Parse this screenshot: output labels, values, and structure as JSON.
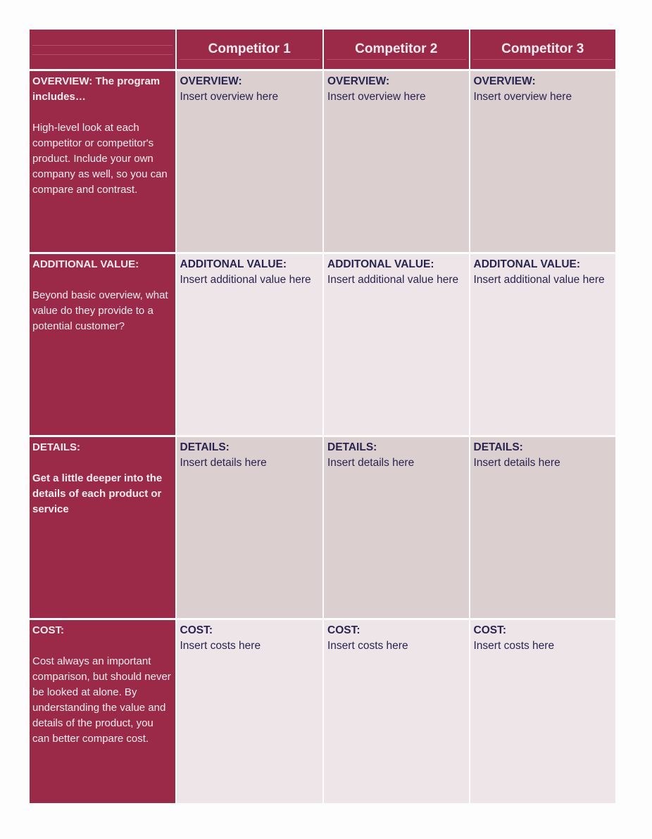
{
  "header": {
    "columns": [
      "",
      "Competitor 1",
      "Competitor 2",
      "Competitor 3"
    ]
  },
  "rows": [
    {
      "label_title": "OVERVIEW: The program includes…",
      "label_desc": "High-level look at each competitor or competitor's product. Include your own company as well, so you can compare and contrast.",
      "cells": [
        {
          "title": "OVERVIEW:",
          "text": "Insert overview here"
        },
        {
          "title": "OVERVIEW:",
          "text": "Insert overview here"
        },
        {
          "title": "OVERVIEW:",
          "text": "Insert overview here"
        }
      ]
    },
    {
      "label_title": "ADDITIONAL VALUE:",
      "label_desc": "Beyond basic overview, what value do they provide to a potential customer?",
      "cells": [
        {
          "title": "ADDITONAL VALUE:",
          "text": "Insert additional value here"
        },
        {
          "title": "ADDITONAL VALUE:",
          "text": "Insert additional value here"
        },
        {
          "title": "ADDITONAL VALUE:",
          "text": "Insert additional value here"
        }
      ]
    },
    {
      "label_title": "DETAILS:",
      "label_desc": "Get a little deeper into the details of each product or service",
      "cells": [
        {
          "title": "DETAILS:",
          "text": "Insert details here"
        },
        {
          "title": "DETAILS:",
          "text": "Insert details here"
        },
        {
          "title": "DETAILS:",
          "text": "Insert details here"
        }
      ]
    },
    {
      "label_title": "COST:",
      "label_desc": "Cost always an important comparison, but should never be looked at alone. By understanding the value and details of the product, you can better compare cost.",
      "cells": [
        {
          "title": "COST:",
          "text": "Insert costs here"
        },
        {
          "title": "COST:",
          "text": "Insert costs here"
        },
        {
          "title": "COST:",
          "text": "Insert costs here"
        }
      ]
    }
  ],
  "colors": {
    "accent": "#9b2948",
    "cell_dark": "#dccfd0",
    "cell_light": "#ede5e7",
    "value_text": "#2a2450"
  }
}
